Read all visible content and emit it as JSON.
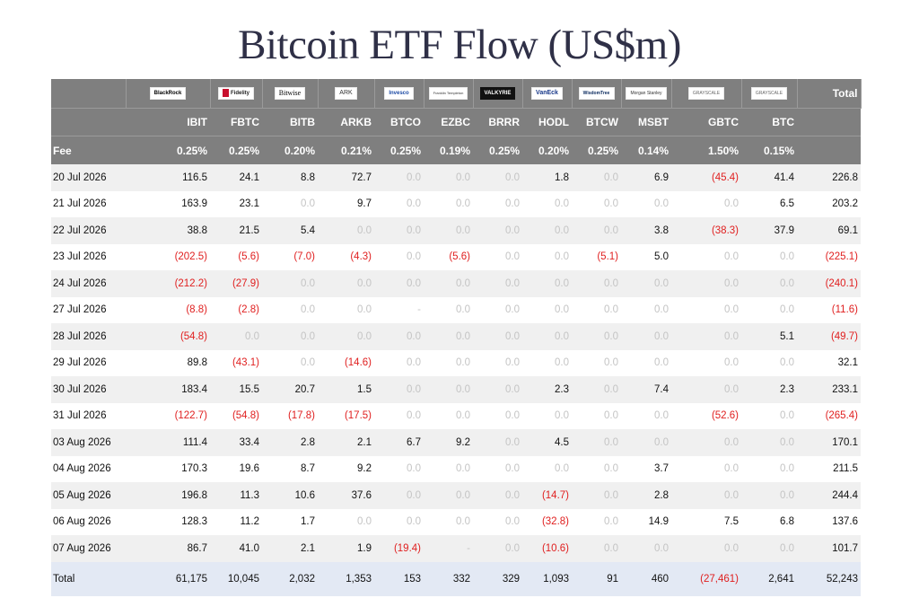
{
  "title": "Bitcoin ETF Flow (US$m)",
  "header": {
    "total_label": "Total",
    "fee_label": "Fee",
    "logos": [
      "BlackRock",
      "Fidelity",
      "Bitwise",
      "ARK",
      "Invesco",
      "Franklin Templeton",
      "VALKYRIE",
      "VanEck",
      "WisdomTree",
      "Morgan Stanley",
      "GRAYSCALE",
      "GRAYSCALE"
    ],
    "tickers": [
      "IBIT",
      "FBTC",
      "BITB",
      "ARKB",
      "BTCO",
      "EZBC",
      "BRRR",
      "HODL",
      "BTCW",
      "MSBT",
      "GBTC",
      "BTC"
    ],
    "fees": [
      "0.25%",
      "0.25%",
      "0.20%",
      "0.21%",
      "0.25%",
      "0.19%",
      "0.25%",
      "0.20%",
      "0.25%",
      "0.14%",
      "1.50%",
      "0.15%"
    ]
  },
  "rows": [
    {
      "date": "20 Jul 2026",
      "values": [
        "116.5",
        "24.1",
        "8.8",
        "72.7",
        "0.0",
        "0.0",
        "0.0",
        "1.8",
        "0.0",
        "6.9",
        "(45.4)",
        "41.4"
      ],
      "total": "226.8"
    },
    {
      "date": "21 Jul 2026",
      "values": [
        "163.9",
        "23.1",
        "0.0",
        "9.7",
        "0.0",
        "0.0",
        "0.0",
        "0.0",
        "0.0",
        "0.0",
        "0.0",
        "6.5"
      ],
      "total": "203.2"
    },
    {
      "date": "22 Jul 2026",
      "values": [
        "38.8",
        "21.5",
        "5.4",
        "0.0",
        "0.0",
        "0.0",
        "0.0",
        "0.0",
        "0.0",
        "3.8",
        "(38.3)",
        "37.9"
      ],
      "total": "69.1"
    },
    {
      "date": "23 Jul 2026",
      "values": [
        "(202.5)",
        "(5.6)",
        "(7.0)",
        "(4.3)",
        "0.0",
        "(5.6)",
        "0.0",
        "0.0",
        "(5.1)",
        "5.0",
        "0.0",
        "0.0"
      ],
      "total": "(225.1)"
    },
    {
      "date": "24 Jul 2026",
      "values": [
        "(212.2)",
        "(27.9)",
        "0.0",
        "0.0",
        "0.0",
        "0.0",
        "0.0",
        "0.0",
        "0.0",
        "0.0",
        "0.0",
        "0.0"
      ],
      "total": "(240.1)"
    },
    {
      "date": "27 Jul 2026",
      "values": [
        "(8.8)",
        "(2.8)",
        "0.0",
        "0.0",
        "-",
        "0.0",
        "0.0",
        "0.0",
        "0.0",
        "0.0",
        "0.0",
        "0.0"
      ],
      "total": "(11.6)"
    },
    {
      "date": "28 Jul 2026",
      "values": [
        "(54.8)",
        "0.0",
        "0.0",
        "0.0",
        "0.0",
        "0.0",
        "0.0",
        "0.0",
        "0.0",
        "0.0",
        "0.0",
        "5.1"
      ],
      "total": "(49.7)"
    },
    {
      "date": "29 Jul 2026",
      "values": [
        "89.8",
        "(43.1)",
        "0.0",
        "(14.6)",
        "0.0",
        "0.0",
        "0.0",
        "0.0",
        "0.0",
        "0.0",
        "0.0",
        "0.0"
      ],
      "total": "32.1"
    },
    {
      "date": "30 Jul 2026",
      "values": [
        "183.4",
        "15.5",
        "20.7",
        "1.5",
        "0.0",
        "0.0",
        "0.0",
        "2.3",
        "0.0",
        "7.4",
        "0.0",
        "2.3"
      ],
      "total": "233.1"
    },
    {
      "date": "31 Jul 2026",
      "values": [
        "(122.7)",
        "(54.8)",
        "(17.8)",
        "(17.5)",
        "0.0",
        "0.0",
        "0.0",
        "0.0",
        "0.0",
        "0.0",
        "(52.6)",
        "0.0"
      ],
      "total": "(265.4)"
    },
    {
      "date": "03 Aug 2026",
      "values": [
        "111.4",
        "33.4",
        "2.8",
        "2.1",
        "6.7",
        "9.2",
        "0.0",
        "4.5",
        "0.0",
        "0.0",
        "0.0",
        "0.0"
      ],
      "total": "170.1"
    },
    {
      "date": "04 Aug 2026",
      "values": [
        "170.3",
        "19.6",
        "8.7",
        "9.2",
        "0.0",
        "0.0",
        "0.0",
        "0.0",
        "0.0",
        "3.7",
        "0.0",
        "0.0"
      ],
      "total": "211.5"
    },
    {
      "date": "05 Aug 2026",
      "values": [
        "196.8",
        "11.3",
        "10.6",
        "37.6",
        "0.0",
        "0.0",
        "0.0",
        "(14.7)",
        "0.0",
        "2.8",
        "0.0",
        "0.0"
      ],
      "total": "244.4"
    },
    {
      "date": "06 Aug 2026",
      "values": [
        "128.3",
        "11.2",
        "1.7",
        "0.0",
        "0.0",
        "0.0",
        "0.0",
        "(32.8)",
        "0.0",
        "14.9",
        "7.5",
        "6.8"
      ],
      "total": "137.6"
    },
    {
      "date": "07 Aug 2026",
      "values": [
        "86.7",
        "41.0",
        "2.1",
        "1.9",
        "(19.4)",
        "-",
        "0.0",
        "(10.6)",
        "0.0",
        "0.0",
        "0.0",
        "0.0"
      ],
      "total": "101.7"
    }
  ],
  "totals": {
    "label": "Total",
    "values": [
      "61,175",
      "10,045",
      "2,032",
      "1,353",
      "153",
      "332",
      "329",
      "1,093",
      "91",
      "460",
      "(27,461)",
      "2,641"
    ],
    "total": "52,243"
  },
  "colors": {
    "header_bg": "#7f7f7f",
    "negative": "#e02020",
    "zero": "#c4c4c4",
    "total_row_bg": "#e3e9f4",
    "title": "#2f3047"
  }
}
